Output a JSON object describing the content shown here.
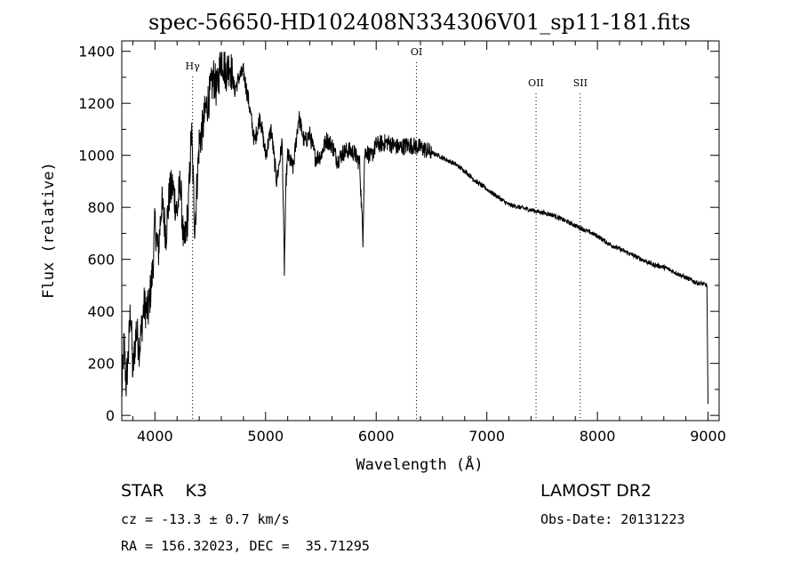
{
  "chart_data": {
    "type": "line",
    "title": "spec-56650-HD102408N334306V01_sp11-181.fits",
    "xlabel": "Wavelength (Å)",
    "ylabel": "Flux (relative)",
    "xlim": [
      3700,
      9100
    ],
    "ylim": [
      -20,
      1440
    ],
    "xticks": [
      4000,
      5000,
      6000,
      7000,
      8000,
      9000
    ],
    "yticks": [
      0,
      200,
      400,
      600,
      800,
      1000,
      1200,
      1400
    ],
    "grid": false,
    "lines": [
      {
        "label": "Hγ",
        "x": 4340
      },
      {
        "label": "OI",
        "x": 6364
      },
      {
        "label": "OII",
        "x": 7445
      },
      {
        "label": "SII",
        "x": 7845
      }
    ],
    "series": [
      {
        "x": [
          3700,
          3720,
          3740,
          3760,
          3780,
          3800,
          3830,
          3860,
          3900,
          3940,
          3980,
          4000,
          4030,
          4060,
          4100,
          4130,
          4160,
          4200,
          4230,
          4260,
          4300,
          4330,
          4360,
          4400,
          4430,
          4460,
          4500,
          4530,
          4560,
          4600,
          4640,
          4680,
          4720,
          4760,
          4800,
          4850,
          4900,
          4950,
          5000,
          5050,
          5100,
          5150,
          5170,
          5185,
          5200,
          5250,
          5300,
          5350,
          5400,
          5450,
          5500,
          5550,
          5600,
          5650,
          5700,
          5750,
          5800,
          5850,
          5880,
          5895,
          5910,
          5950,
          6000,
          6100,
          6200,
          6300,
          6400,
          6500,
          6560,
          6600,
          6700,
          6800,
          6900,
          7000,
          7100,
          7200,
          7300,
          7400,
          7500,
          7600,
          7700,
          7800,
          7900,
          8000,
          8100,
          8200,
          8300,
          8400,
          8500,
          8600,
          8700,
          8800,
          8900,
          8960,
          8990,
          9000
        ],
        "y": [
          80,
          280,
          120,
          240,
          420,
          160,
          330,
          260,
          420,
          400,
          560,
          740,
          620,
          820,
          700,
          850,
          880,
          780,
          900,
          640,
          780,
          1100,
          720,
          1050,
          1100,
          1180,
          1240,
          1300,
          1250,
          1380,
          1320,
          1350,
          1250,
          1300,
          1320,
          1200,
          1050,
          1150,
          1000,
          1100,
          900,
          1050,
          560,
          900,
          1000,
          950,
          1150,
          1050,
          1080,
          990,
          1000,
          1060,
          1040,
          980,
          1010,
          1020,
          1010,
          970,
          680,
          1000,
          1020,
          990,
          1040,
          1050,
          1030,
          1040,
          1030,
          1010,
          1000,
          990,
          970,
          940,
          900,
          870,
          840,
          810,
          800,
          790,
          780,
          770,
          750,
          730,
          710,
          690,
          660,
          640,
          620,
          600,
          580,
          570,
          550,
          530,
          510,
          505,
          500,
          40
        ]
      }
    ]
  },
  "info": {
    "object": "STAR    K3",
    "survey": "LAMOST DR2",
    "velocity": "cz = -13.3 ± 0.7 km/s",
    "obs_date": "Obs-Date: 20131223",
    "coords": "RA = 156.32023, DEC =  35.71295"
  }
}
